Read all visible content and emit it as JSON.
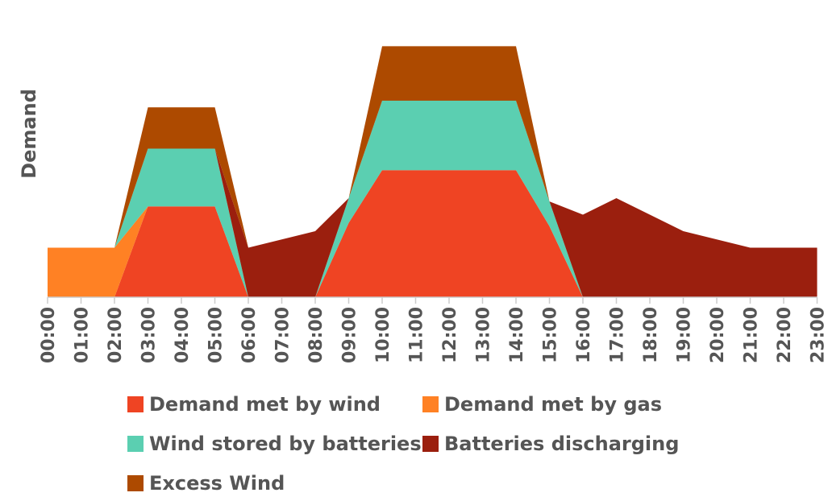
{
  "chart_data": {
    "type": "area",
    "stacked": true,
    "ylabel": "Demand",
    "xlabel": "",
    "ylim": [
      0,
      15
    ],
    "grid": false,
    "legend_position": "bottom",
    "categories": [
      "00:00",
      "01:00",
      "02:00",
      "03:00",
      "04:00",
      "05:00",
      "06:00",
      "07:00",
      "08:00",
      "09:00",
      "10:00",
      "11:00",
      "12:00",
      "13:00",
      "14:00",
      "15:00",
      "16:00",
      "17:00",
      "18:00",
      "19:00",
      "20:00",
      "21:00",
      "22:00",
      "23:00"
    ],
    "series": [
      {
        "name": "Demand met by wind",
        "color": "#EF4423",
        "values": [
          0,
          0,
          0,
          5.5,
          5.5,
          5.5,
          0,
          0,
          0,
          4.5,
          7.7,
          7.7,
          7.7,
          7.7,
          7.7,
          4.3,
          0,
          0,
          0,
          0,
          0,
          0,
          0,
          0
        ]
      },
      {
        "name": "Demand met by gas",
        "color": "#FF8124",
        "values": [
          3,
          3,
          3,
          0,
          0,
          0,
          0,
          0,
          0,
          0,
          0,
          0,
          0,
          0,
          0,
          0,
          0,
          0,
          0,
          0,
          0,
          0,
          0,
          0
        ]
      },
      {
        "name": "Wind stored by batteries",
        "color": "#5BCFB1",
        "values": [
          0,
          0,
          0,
          3.5,
          3.5,
          3.5,
          0,
          0,
          0,
          1.5,
          4.2,
          4.2,
          4.2,
          4.2,
          4.2,
          1.5,
          0,
          0,
          0,
          0,
          0,
          0,
          0,
          0
        ]
      },
      {
        "name": "Batteries discharging",
        "color": "#9B1F0E",
        "values": [
          0,
          0,
          0,
          0,
          0,
          0,
          3,
          3.5,
          4,
          0,
          0,
          0,
          0,
          0,
          0,
          0,
          5,
          6,
          5,
          4,
          3.5,
          3,
          3,
          3
        ]
      },
      {
        "name": "Excess Wind",
        "color": "#AD4A00",
        "values": [
          0,
          0,
          0,
          2.5,
          2.5,
          2.5,
          0,
          0,
          0,
          0,
          3.3,
          3.3,
          3.3,
          3.3,
          3.3,
          0,
          0,
          0,
          0,
          0,
          0,
          0,
          0,
          0
        ]
      }
    ]
  }
}
